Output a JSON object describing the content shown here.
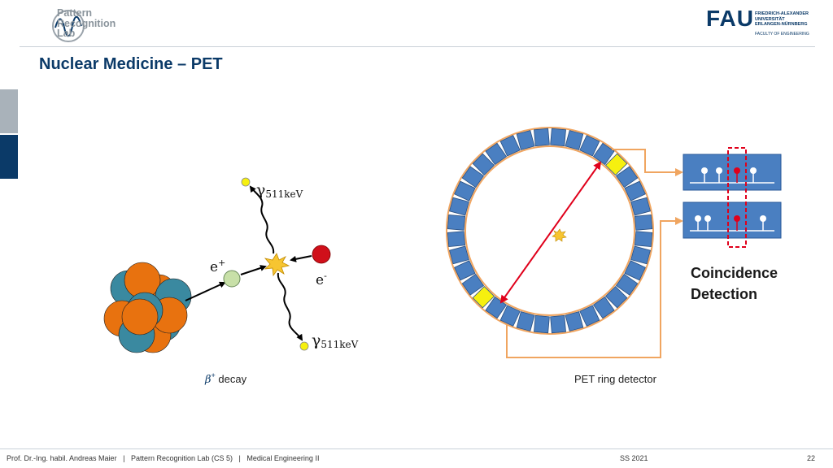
{
  "header": {
    "logo_lines": [
      "Pattern",
      "Recognition",
      "Lab"
    ],
    "university_logo": "FAU",
    "university_name_lines": [
      "FRIEDRICH-ALEXANDER",
      "UNIVERSITÄT",
      "ERLANGEN-NÜRNBERG"
    ],
    "faculty": "FACULTY OF ENGINEERING"
  },
  "title": "Nuclear Medicine – PET",
  "decay_diagram": {
    "gamma_top_symbol": "γ",
    "gamma_top_energy": "511keV",
    "gamma_bottom_symbol": "γ",
    "gamma_bottom_energy": "511keV",
    "positron_symbol": "e",
    "positron_charge": "+",
    "electron_symbol": "e",
    "electron_charge": "-",
    "caption_symbol": "β",
    "caption_sup": "+",
    "caption_text": " decay"
  },
  "pet_diagram": {
    "caption": "PET ring detector",
    "coincidence_line1": "Coincidence",
    "coincidence_line2": "Detection"
  },
  "colors": {
    "accent_blue": "#0b3a68",
    "detector_blue": "#4a7fc1",
    "highlight_yellow": "#f6f00f",
    "ring_orange": "#f0a560",
    "signal_red": "#e0001b",
    "nucleus_orange": "#e8720f",
    "nucleus_teal": "#3a89a0"
  },
  "footer": {
    "author": "Prof. Dr.-Ing. habil. Andreas Maier",
    "lab": "Pattern Recognition Lab (CS 5)",
    "course": "Medical Engineering II",
    "separator": "|",
    "term": "SS 2021",
    "page": "22"
  }
}
